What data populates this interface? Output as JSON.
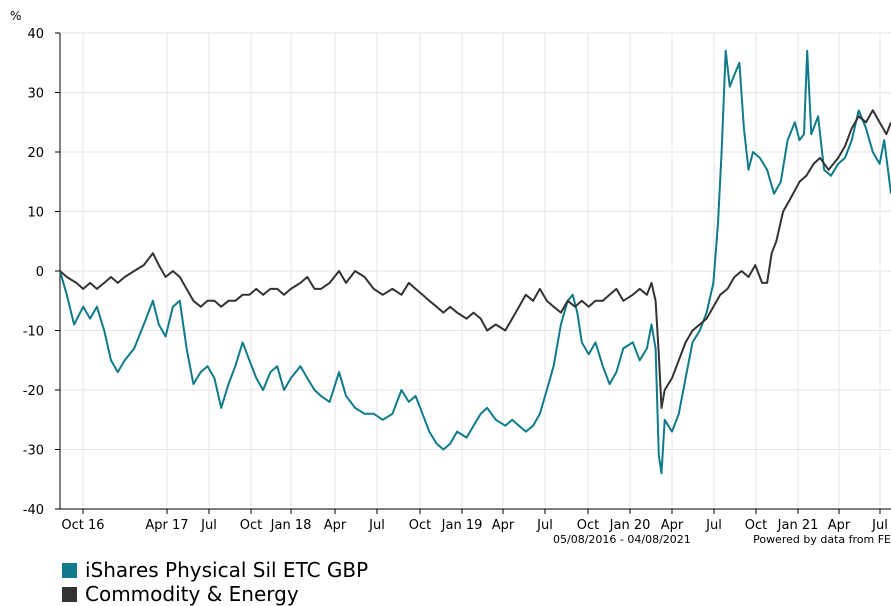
{
  "chart_data": {
    "type": "line",
    "unit_label": "%",
    "ylim": [
      -40,
      40
    ],
    "y_ticks": [
      "40",
      "30",
      "20",
      "10",
      "0",
      "-10",
      "-20",
      "-30",
      "-40"
    ],
    "x_ticks": [
      "Oct 16",
      "Apr 17",
      "Jul",
      "Oct",
      "Jan 18",
      "Apr",
      "Jul",
      "Oct",
      "Jan 19",
      "Apr",
      "Jul",
      "Oct",
      "Jan 20",
      "Apr",
      "Jul",
      "Oct",
      "Jan 21",
      "Apr",
      "Jul"
    ],
    "grid": true,
    "date_range": "05/08/2016 - 04/08/2021",
    "credit": "Powered by data from FE",
    "series": [
      {
        "name": "iShares Physical Sil ETC GBP",
        "color": "#0f7b8a",
        "points": [
          [
            "2016-08-05",
            0
          ],
          [
            "2016-08-20",
            -4
          ],
          [
            "2016-09-05",
            -9
          ],
          [
            "2016-09-25",
            -6
          ],
          [
            "2016-10-10",
            -8
          ],
          [
            "2016-10-25",
            -6
          ],
          [
            "2016-11-10",
            -10
          ],
          [
            "2016-11-25",
            -15
          ],
          [
            "2016-12-10",
            -17
          ],
          [
            "2016-12-25",
            -15
          ],
          [
            "2017-01-15",
            -13
          ],
          [
            "2017-02-05",
            -9
          ],
          [
            "2017-02-25",
            -5
          ],
          [
            "2017-03-10",
            -9
          ],
          [
            "2017-03-25",
            -11
          ],
          [
            "2017-04-10",
            -6
          ],
          [
            "2017-04-25",
            -5
          ],
          [
            "2017-05-10",
            -13
          ],
          [
            "2017-05-25",
            -19
          ],
          [
            "2017-06-10",
            -17
          ],
          [
            "2017-06-25",
            -16
          ],
          [
            "2017-07-10",
            -18
          ],
          [
            "2017-07-25",
            -23
          ],
          [
            "2017-08-10",
            -19
          ],
          [
            "2017-08-25",
            -16
          ],
          [
            "2017-09-10",
            -12
          ],
          [
            "2017-09-25",
            -15
          ],
          [
            "2017-10-10",
            -18
          ],
          [
            "2017-10-25",
            -20
          ],
          [
            "2017-11-10",
            -17
          ],
          [
            "2017-11-25",
            -16
          ],
          [
            "2017-12-10",
            -20
          ],
          [
            "2017-12-25",
            -18
          ],
          [
            "2018-01-15",
            -16
          ],
          [
            "2018-01-30",
            -18
          ],
          [
            "2018-02-15",
            -20
          ],
          [
            "2018-03-01",
            -21
          ],
          [
            "2018-03-20",
            -22
          ],
          [
            "2018-04-10",
            -17
          ],
          [
            "2018-04-25",
            -21
          ],
          [
            "2018-05-15",
            -23
          ],
          [
            "2018-06-05",
            -24
          ],
          [
            "2018-06-25",
            -24
          ],
          [
            "2018-07-15",
            -25
          ],
          [
            "2018-08-05",
            -24
          ],
          [
            "2018-08-25",
            -20
          ],
          [
            "2018-09-10",
            -22
          ],
          [
            "2018-09-25",
            -21
          ],
          [
            "2018-10-10",
            -24
          ],
          [
            "2018-10-25",
            -27
          ],
          [
            "2018-11-10",
            -29
          ],
          [
            "2018-11-25",
            -30
          ],
          [
            "2018-12-10",
            -29
          ],
          [
            "2018-12-25",
            -27
          ],
          [
            "2019-01-15",
            -28
          ],
          [
            "2019-01-30",
            -26
          ],
          [
            "2019-02-15",
            -24
          ],
          [
            "2019-03-01",
            -23
          ],
          [
            "2019-03-20",
            -25
          ],
          [
            "2019-04-10",
            -26
          ],
          [
            "2019-04-25",
            -25
          ],
          [
            "2019-05-10",
            -26
          ],
          [
            "2019-05-25",
            -27
          ],
          [
            "2019-06-10",
            -26
          ],
          [
            "2019-06-25",
            -24
          ],
          [
            "2019-07-10",
            -20
          ],
          [
            "2019-07-25",
            -16
          ],
          [
            "2019-08-10",
            -9
          ],
          [
            "2019-08-25",
            -5
          ],
          [
            "2019-09-05",
            -4
          ],
          [
            "2019-09-15",
            -7
          ],
          [
            "2019-09-25",
            -12
          ],
          [
            "2019-10-10",
            -14
          ],
          [
            "2019-10-25",
            -12
          ],
          [
            "2019-11-10",
            -16
          ],
          [
            "2019-11-25",
            -19
          ],
          [
            "2019-12-10",
            -17
          ],
          [
            "2019-12-25",
            -13
          ],
          [
            "2020-01-15",
            -12
          ],
          [
            "2020-01-30",
            -15
          ],
          [
            "2020-02-15",
            -13
          ],
          [
            "2020-02-25",
            -9
          ],
          [
            "2020-03-05",
            -13
          ],
          [
            "2020-03-12",
            -31
          ],
          [
            "2020-03-18",
            -34
          ],
          [
            "2020-03-25",
            -25
          ],
          [
            "2020-04-10",
            -27
          ],
          [
            "2020-04-25",
            -24
          ],
          [
            "2020-05-10",
            -18
          ],
          [
            "2020-05-25",
            -12
          ],
          [
            "2020-06-10",
            -10
          ],
          [
            "2020-06-25",
            -7
          ],
          [
            "2020-07-10",
            -2
          ],
          [
            "2020-07-20",
            8
          ],
          [
            "2020-07-28",
            20
          ],
          [
            "2020-08-06",
            37
          ],
          [
            "2020-08-15",
            31
          ],
          [
            "2020-08-25",
            33
          ],
          [
            "2020-09-05",
            35
          ],
          [
            "2020-09-15",
            24
          ],
          [
            "2020-09-25",
            17
          ],
          [
            "2020-10-05",
            20
          ],
          [
            "2020-10-20",
            19
          ],
          [
            "2020-11-05",
            17
          ],
          [
            "2020-11-20",
            13
          ],
          [
            "2020-12-05",
            15
          ],
          [
            "2020-12-20",
            22
          ],
          [
            "2021-01-05",
            25
          ],
          [
            "2021-01-15",
            22
          ],
          [
            "2021-01-25",
            23
          ],
          [
            "2021-02-01",
            37
          ],
          [
            "2021-02-10",
            23
          ],
          [
            "2021-02-25",
            26
          ],
          [
            "2021-03-10",
            17
          ],
          [
            "2021-03-25",
            16
          ],
          [
            "2021-04-10",
            18
          ],
          [
            "2021-04-25",
            19
          ],
          [
            "2021-05-10",
            22
          ],
          [
            "2021-05-25",
            27
          ],
          [
            "2021-06-10",
            24
          ],
          [
            "2021-06-25",
            20
          ],
          [
            "2021-07-10",
            18
          ],
          [
            "2021-07-20",
            22
          ],
          [
            "2021-08-04",
            13
          ]
        ]
      },
      {
        "name": "Commodity & Energy",
        "color": "#333333",
        "points": [
          [
            "2016-08-05",
            0
          ],
          [
            "2016-08-20",
            -1
          ],
          [
            "2016-09-10",
            -2
          ],
          [
            "2016-09-25",
            -3
          ],
          [
            "2016-10-10",
            -2
          ],
          [
            "2016-10-25",
            -3
          ],
          [
            "2016-11-10",
            -2
          ],
          [
            "2016-11-25",
            -1
          ],
          [
            "2016-12-10",
            -2
          ],
          [
            "2016-12-25",
            -1
          ],
          [
            "2017-01-15",
            0
          ],
          [
            "2017-02-05",
            1
          ],
          [
            "2017-02-25",
            3
          ],
          [
            "2017-03-10",
            1
          ],
          [
            "2017-03-25",
            -1
          ],
          [
            "2017-04-10",
            0
          ],
          [
            "2017-04-25",
            -1
          ],
          [
            "2017-05-10",
            -3
          ],
          [
            "2017-05-25",
            -5
          ],
          [
            "2017-06-10",
            -6
          ],
          [
            "2017-06-25",
            -5
          ],
          [
            "2017-07-10",
            -5
          ],
          [
            "2017-07-25",
            -6
          ],
          [
            "2017-08-10",
            -5
          ],
          [
            "2017-08-25",
            -5
          ],
          [
            "2017-09-10",
            -4
          ],
          [
            "2017-09-25",
            -4
          ],
          [
            "2017-10-10",
            -3
          ],
          [
            "2017-10-25",
            -4
          ],
          [
            "2017-11-10",
            -3
          ],
          [
            "2017-11-25",
            -3
          ],
          [
            "2017-12-10",
            -4
          ],
          [
            "2017-12-25",
            -3
          ],
          [
            "2018-01-15",
            -2
          ],
          [
            "2018-01-30",
            -1
          ],
          [
            "2018-02-15",
            -3
          ],
          [
            "2018-03-01",
            -3
          ],
          [
            "2018-03-20",
            -2
          ],
          [
            "2018-04-10",
            0
          ],
          [
            "2018-04-25",
            -2
          ],
          [
            "2018-05-15",
            0
          ],
          [
            "2018-06-05",
            -1
          ],
          [
            "2018-06-25",
            -3
          ],
          [
            "2018-07-15",
            -4
          ],
          [
            "2018-08-05",
            -3
          ],
          [
            "2018-08-25",
            -4
          ],
          [
            "2018-09-10",
            -2
          ],
          [
            "2018-09-25",
            -3
          ],
          [
            "2018-10-10",
            -4
          ],
          [
            "2018-10-25",
            -5
          ],
          [
            "2018-11-10",
            -6
          ],
          [
            "2018-11-25",
            -7
          ],
          [
            "2018-12-10",
            -6
          ],
          [
            "2018-12-25",
            -7
          ],
          [
            "2019-01-15",
            -8
          ],
          [
            "2019-01-30",
            -7
          ],
          [
            "2019-02-15",
            -8
          ],
          [
            "2019-03-01",
            -10
          ],
          [
            "2019-03-20",
            -9
          ],
          [
            "2019-04-10",
            -10
          ],
          [
            "2019-04-25",
            -8
          ],
          [
            "2019-05-10",
            -6
          ],
          [
            "2019-05-25",
            -4
          ],
          [
            "2019-06-10",
            -5
          ],
          [
            "2019-06-25",
            -3
          ],
          [
            "2019-07-10",
            -5
          ],
          [
            "2019-07-25",
            -6
          ],
          [
            "2019-08-10",
            -7
          ],
          [
            "2019-08-25",
            -5
          ],
          [
            "2019-09-10",
            -6
          ],
          [
            "2019-09-25",
            -5
          ],
          [
            "2019-10-10",
            -6
          ],
          [
            "2019-10-25",
            -5
          ],
          [
            "2019-11-10",
            -5
          ],
          [
            "2019-11-25",
            -4
          ],
          [
            "2019-12-10",
            -3
          ],
          [
            "2019-12-25",
            -5
          ],
          [
            "2020-01-15",
            -4
          ],
          [
            "2020-01-30",
            -3
          ],
          [
            "2020-02-15",
            -4
          ],
          [
            "2020-02-25",
            -2
          ],
          [
            "2020-03-05",
            -5
          ],
          [
            "2020-03-12",
            -14
          ],
          [
            "2020-03-18",
            -23
          ],
          [
            "2020-03-25",
            -20
          ],
          [
            "2020-04-10",
            -18
          ],
          [
            "2020-04-25",
            -15
          ],
          [
            "2020-05-10",
            -12
          ],
          [
            "2020-05-25",
            -10
          ],
          [
            "2020-06-10",
            -9
          ],
          [
            "2020-06-25",
            -8
          ],
          [
            "2020-07-10",
            -6
          ],
          [
            "2020-07-25",
            -4
          ],
          [
            "2020-08-10",
            -3
          ],
          [
            "2020-08-25",
            -1
          ],
          [
            "2020-09-10",
            0
          ],
          [
            "2020-09-25",
            -1
          ],
          [
            "2020-10-10",
            1
          ],
          [
            "2020-10-25",
            -2
          ],
          [
            "2020-11-05",
            -2
          ],
          [
            "2020-11-15",
            3
          ],
          [
            "2020-11-25",
            5
          ],
          [
            "2020-12-10",
            10
          ],
          [
            "2020-12-25",
            12
          ],
          [
            "2021-01-15",
            15
          ],
          [
            "2021-01-30",
            16
          ],
          [
            "2021-02-15",
            18
          ],
          [
            "2021-03-01",
            19
          ],
          [
            "2021-03-20",
            17
          ],
          [
            "2021-04-10",
            19
          ],
          [
            "2021-04-25",
            21
          ],
          [
            "2021-05-10",
            24
          ],
          [
            "2021-05-25",
            26
          ],
          [
            "2021-06-10",
            25
          ],
          [
            "2021-06-25",
            27
          ],
          [
            "2021-07-10",
            25
          ],
          [
            "2021-07-25",
            23
          ],
          [
            "2021-08-04",
            25
          ]
        ]
      }
    ]
  }
}
